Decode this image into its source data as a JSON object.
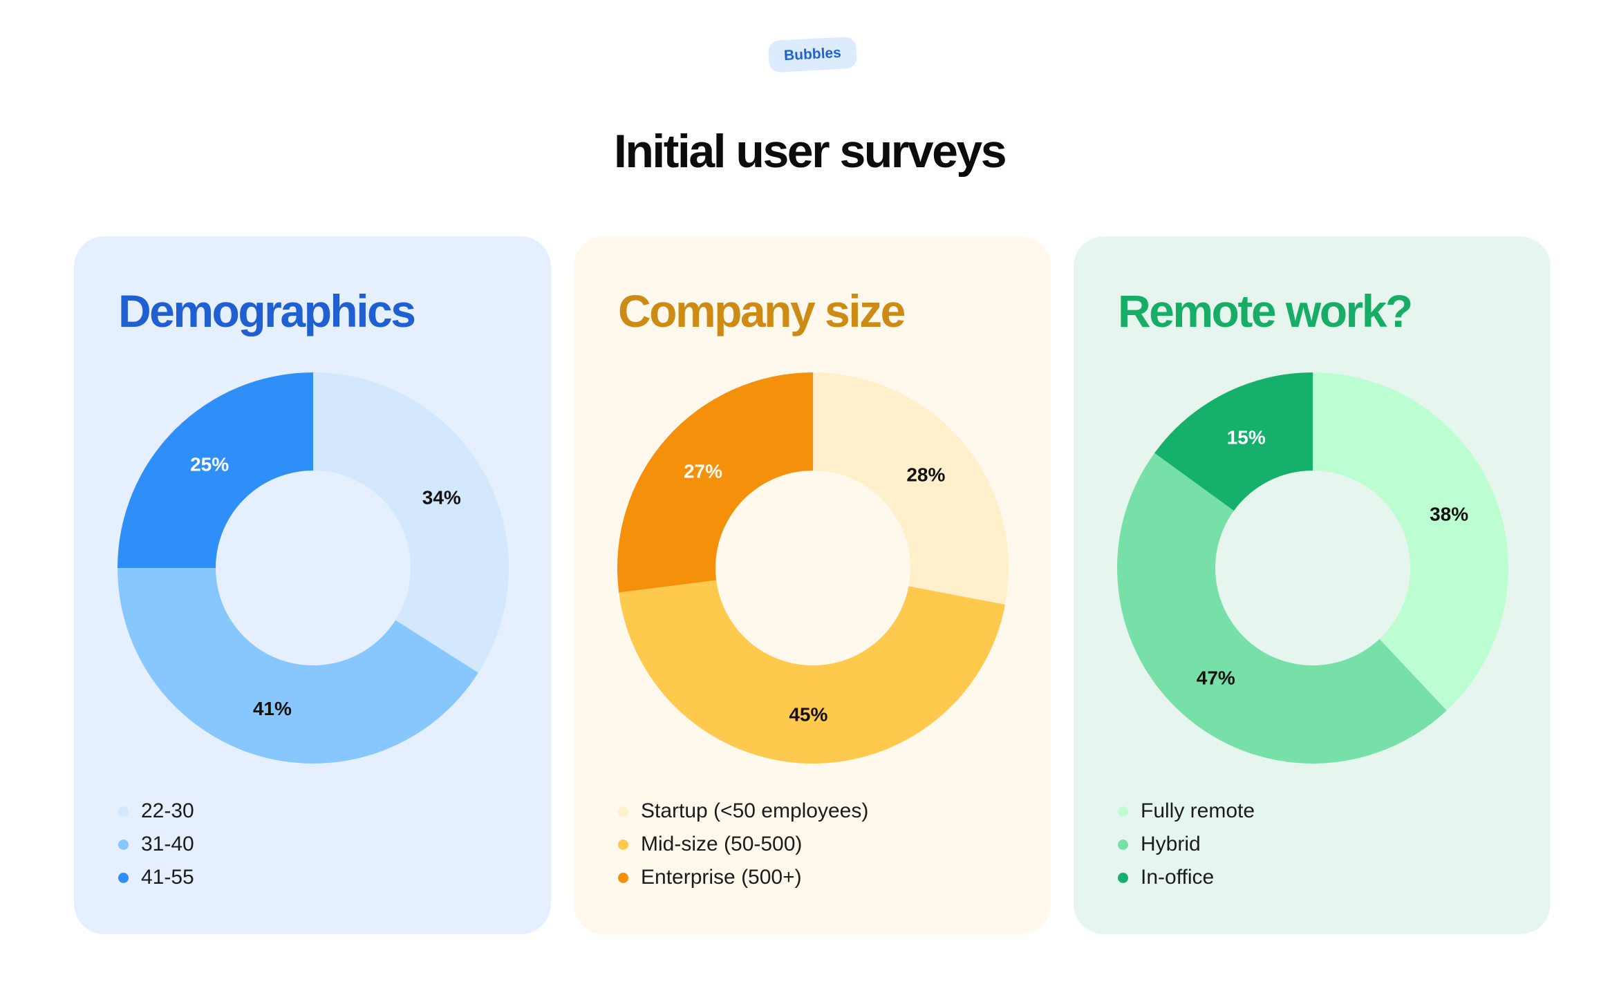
{
  "badge": "Bubbles",
  "page_title": "Initial user surveys",
  "cards": [
    {
      "title": "Demographics",
      "title_color": "#1f5fd1",
      "bg": "#e5effd"
    },
    {
      "title": "Company size",
      "title_color": "#cd8b15",
      "bg": "#fff8ec"
    },
    {
      "title": "Remote work?",
      "title_color": "#17ad67",
      "bg": "#e6f6ef"
    }
  ],
  "chart_data": [
    {
      "type": "pie",
      "title": "Demographics",
      "categories": [
        "22-30",
        "31-40",
        "41-55"
      ],
      "values": [
        34,
        41,
        25
      ],
      "labels": [
        "34%",
        "41%",
        "25%"
      ],
      "colors": [
        "#d3e8fd",
        "#87c7fd",
        "#2f8ff8"
      ],
      "label_colors": [
        "#111111",
        "#111111",
        "#ffffff"
      ],
      "legend": "bottom-left"
    },
    {
      "type": "pie",
      "title": "Company size",
      "categories": [
        "Startup (<50 employees)",
        "Mid-size (50-500)",
        "Enterprise (500+)"
      ],
      "values": [
        28,
        45,
        27
      ],
      "labels": [
        "28%",
        "45%",
        "27%"
      ],
      "colors": [
        "#ffefcb",
        "#ffc94e",
        "#f5900b"
      ],
      "label_colors": [
        "#111111",
        "#111111",
        "#ffffff"
      ],
      "legend": "bottom-left"
    },
    {
      "type": "pie",
      "title": "Remote work?",
      "categories": [
        "Fully remote",
        "Hybrid",
        "In-office"
      ],
      "values": [
        38,
        47,
        15
      ],
      "labels": [
        "38%",
        "47%",
        "15%"
      ],
      "colors": [
        "#bdfdd2",
        "#77e0a9",
        "#15b06b"
      ],
      "label_colors": [
        "#111111",
        "#111111",
        "#ffffff"
      ],
      "legend": "bottom-left"
    }
  ]
}
